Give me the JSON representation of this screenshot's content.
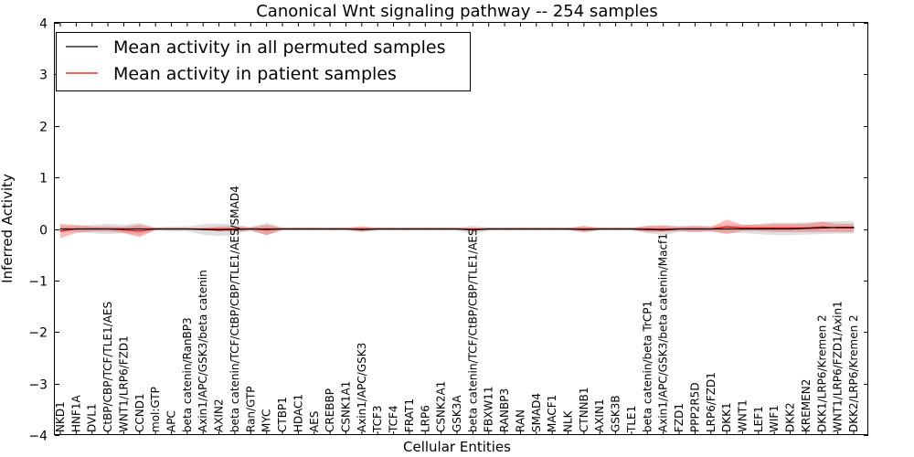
{
  "chart_data": {
    "type": "line",
    "title": "Canonical Wnt signaling pathway -- 254 samples",
    "xlabel": "Cellular Entities",
    "ylabel": "Inferred Activity",
    "ylim": [
      -4,
      4
    ],
    "yticks": [
      -4,
      -3,
      -2,
      -1,
      0,
      1,
      2,
      3,
      4
    ],
    "ytick_labels": [
      "−4",
      "−3",
      "−2",
      "−1",
      "0",
      "1",
      "2",
      "3",
      "4"
    ],
    "legend_position": "top-left",
    "categories": [
      "NKD1",
      "HNF1A",
      "DVL1",
      "CtBP/CBP/TCF/TLE1/AES",
      "WNT1/LRP6/FZD1",
      "CCND1",
      "mol:GTP",
      "APC",
      "beta catenin/RanBP3",
      "Axin1/APC/GSK3/beta catenin",
      "AXIN2",
      "beta catenin/TCF/CtBP/CBP/TLE1/AES/SMAD4",
      "Ran/GTP",
      "MYC",
      "CTBP1",
      "HDAC1",
      "AES",
      "CREBBP",
      "CSNK1A1",
      "Axin1/APC/GSK3",
      "TCF3",
      "TCF4",
      "FRAT1",
      "LRP6",
      "CSNK2A1",
      "GSK3A",
      "beta catenin/TCF/CtBP/CBP/TLE1/AES",
      "FBXW11",
      "RANBP3",
      "RAN",
      "SMAD4",
      "MACF1",
      "NLK",
      "CTNNB1",
      "AXIN1",
      "GSK3B",
      "TLE1",
      "beta catenin/beta TrCP1",
      "Axin1/APC/GSK3/beta catenin/Macf1",
      "FZD1",
      "PPP2R5D",
      "LRP6/FZD1",
      "DKK1",
      "WNT1",
      "LEF1",
      "WIF1",
      "DKK2",
      "KREMEN2",
      "DKK1/LRP6/Kremen 2",
      "WNT1/LRP6/FZD1/Axin1",
      "DKK2/LRP6/Kremen 2"
    ],
    "series": [
      {
        "name": "Mean activity in all permuted samples",
        "color": "#000000",
        "values": [
          0.0,
          0.0,
          0.0,
          0.0,
          0.0,
          0.0,
          0.0,
          0.0,
          0.0,
          -0.01,
          -0.02,
          -0.01,
          0.0,
          0.0,
          0.0,
          0.0,
          0.0,
          0.0,
          0.0,
          -0.01,
          0.0,
          0.0,
          0.0,
          0.0,
          0.0,
          0.0,
          -0.02,
          0.0,
          0.0,
          0.0,
          0.0,
          0.0,
          0.0,
          -0.01,
          0.0,
          0.0,
          0.0,
          -0.01,
          -0.02,
          0.0,
          0.0,
          0.0,
          0.0,
          0.0,
          0.0,
          0.0,
          0.0,
          0.01,
          0.02,
          0.03,
          0.03
        ],
        "band": [
          0.06,
          0.06,
          0.08,
          0.1,
          0.08,
          0.12,
          0.03,
          0.05,
          0.05,
          0.1,
          0.12,
          0.1,
          0.03,
          0.12,
          0.03,
          0.03,
          0.03,
          0.03,
          0.03,
          0.06,
          0.03,
          0.03,
          0.03,
          0.03,
          0.03,
          0.03,
          0.08,
          0.03,
          0.03,
          0.03,
          0.03,
          0.03,
          0.03,
          0.06,
          0.03,
          0.03,
          0.03,
          0.07,
          0.1,
          0.06,
          0.06,
          0.06,
          0.08,
          0.08,
          0.1,
          0.12,
          0.12,
          0.12,
          0.12,
          0.12,
          0.12
        ]
      },
      {
        "name": "Mean activity in patient samples",
        "color": "#ff0000",
        "values": [
          -0.04,
          0.0,
          0.0,
          0.0,
          -0.02,
          -0.04,
          0.0,
          0.0,
          0.0,
          0.0,
          0.0,
          0.0,
          0.0,
          -0.02,
          0.0,
          0.0,
          0.0,
          0.0,
          0.0,
          0.0,
          0.0,
          0.0,
          0.0,
          0.0,
          0.0,
          0.0,
          0.0,
          0.0,
          0.0,
          0.0,
          0.0,
          0.0,
          0.0,
          0.0,
          0.0,
          0.0,
          0.0,
          0.0,
          0.0,
          0.0,
          0.0,
          0.0,
          0.04,
          0.02,
          0.02,
          0.02,
          0.02,
          0.02,
          0.04,
          0.02,
          0.02
        ],
        "band": [
          0.14,
          0.08,
          0.05,
          0.05,
          0.06,
          0.12,
          0.02,
          0.02,
          0.02,
          0.02,
          0.05,
          0.05,
          0.03,
          0.1,
          0.02,
          0.02,
          0.02,
          0.02,
          0.02,
          0.05,
          0.02,
          0.02,
          0.02,
          0.02,
          0.02,
          0.02,
          0.02,
          0.02,
          0.02,
          0.02,
          0.02,
          0.02,
          0.02,
          0.06,
          0.02,
          0.02,
          0.02,
          0.06,
          0.06,
          0.04,
          0.06,
          0.04,
          0.14,
          0.06,
          0.06,
          0.08,
          0.08,
          0.08,
          0.1,
          0.08,
          0.08
        ]
      }
    ]
  }
}
